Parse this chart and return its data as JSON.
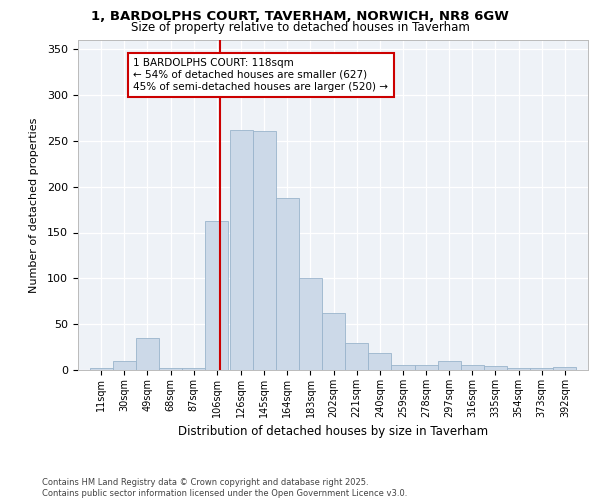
{
  "title_line1": "1, BARDOLPHS COURT, TAVERHAM, NORWICH, NR8 6GW",
  "title_line2": "Size of property relative to detached houses in Taverham",
  "xlabel": "Distribution of detached houses by size in Taverham",
  "ylabel": "Number of detached properties",
  "annotation_line1": "1 BARDOLPHS COURT: 118sqm",
  "annotation_line2": "← 54% of detached houses are smaller (627)",
  "annotation_line3": "45% of semi-detached houses are larger (520) →",
  "property_line_x": 118,
  "categories": [
    "11sqm",
    "30sqm",
    "49sqm",
    "68sqm",
    "87sqm",
    "106sqm",
    "126sqm",
    "145sqm",
    "164sqm",
    "183sqm",
    "202sqm",
    "221sqm",
    "240sqm",
    "259sqm",
    "278sqm",
    "297sqm",
    "316sqm",
    "335sqm",
    "354sqm",
    "373sqm",
    "392sqm"
  ],
  "bin_edges": [
    11,
    30,
    49,
    68,
    87,
    106,
    126,
    145,
    164,
    183,
    202,
    221,
    240,
    259,
    278,
    297,
    316,
    335,
    354,
    373,
    392
  ],
  "values": [
    2,
    10,
    35,
    2,
    2,
    163,
    262,
    261,
    188,
    100,
    62,
    30,
    19,
    6,
    6,
    10,
    6,
    4,
    2,
    2,
    3
  ],
  "bar_color": "#ccd9e8",
  "bar_edgecolor": "#9ab4cc",
  "line_color": "#cc0000",
  "ylim": [
    0,
    360
  ],
  "yticks": [
    0,
    50,
    100,
    150,
    200,
    250,
    300,
    350
  ],
  "bg_color": "#eef2f7",
  "footer": "Contains HM Land Registry data © Crown copyright and database right 2025.\nContains public sector information licensed under the Open Government Licence v3.0.",
  "annotation_box_facecolor": "#ffffff",
  "annotation_box_edgecolor": "#cc0000"
}
